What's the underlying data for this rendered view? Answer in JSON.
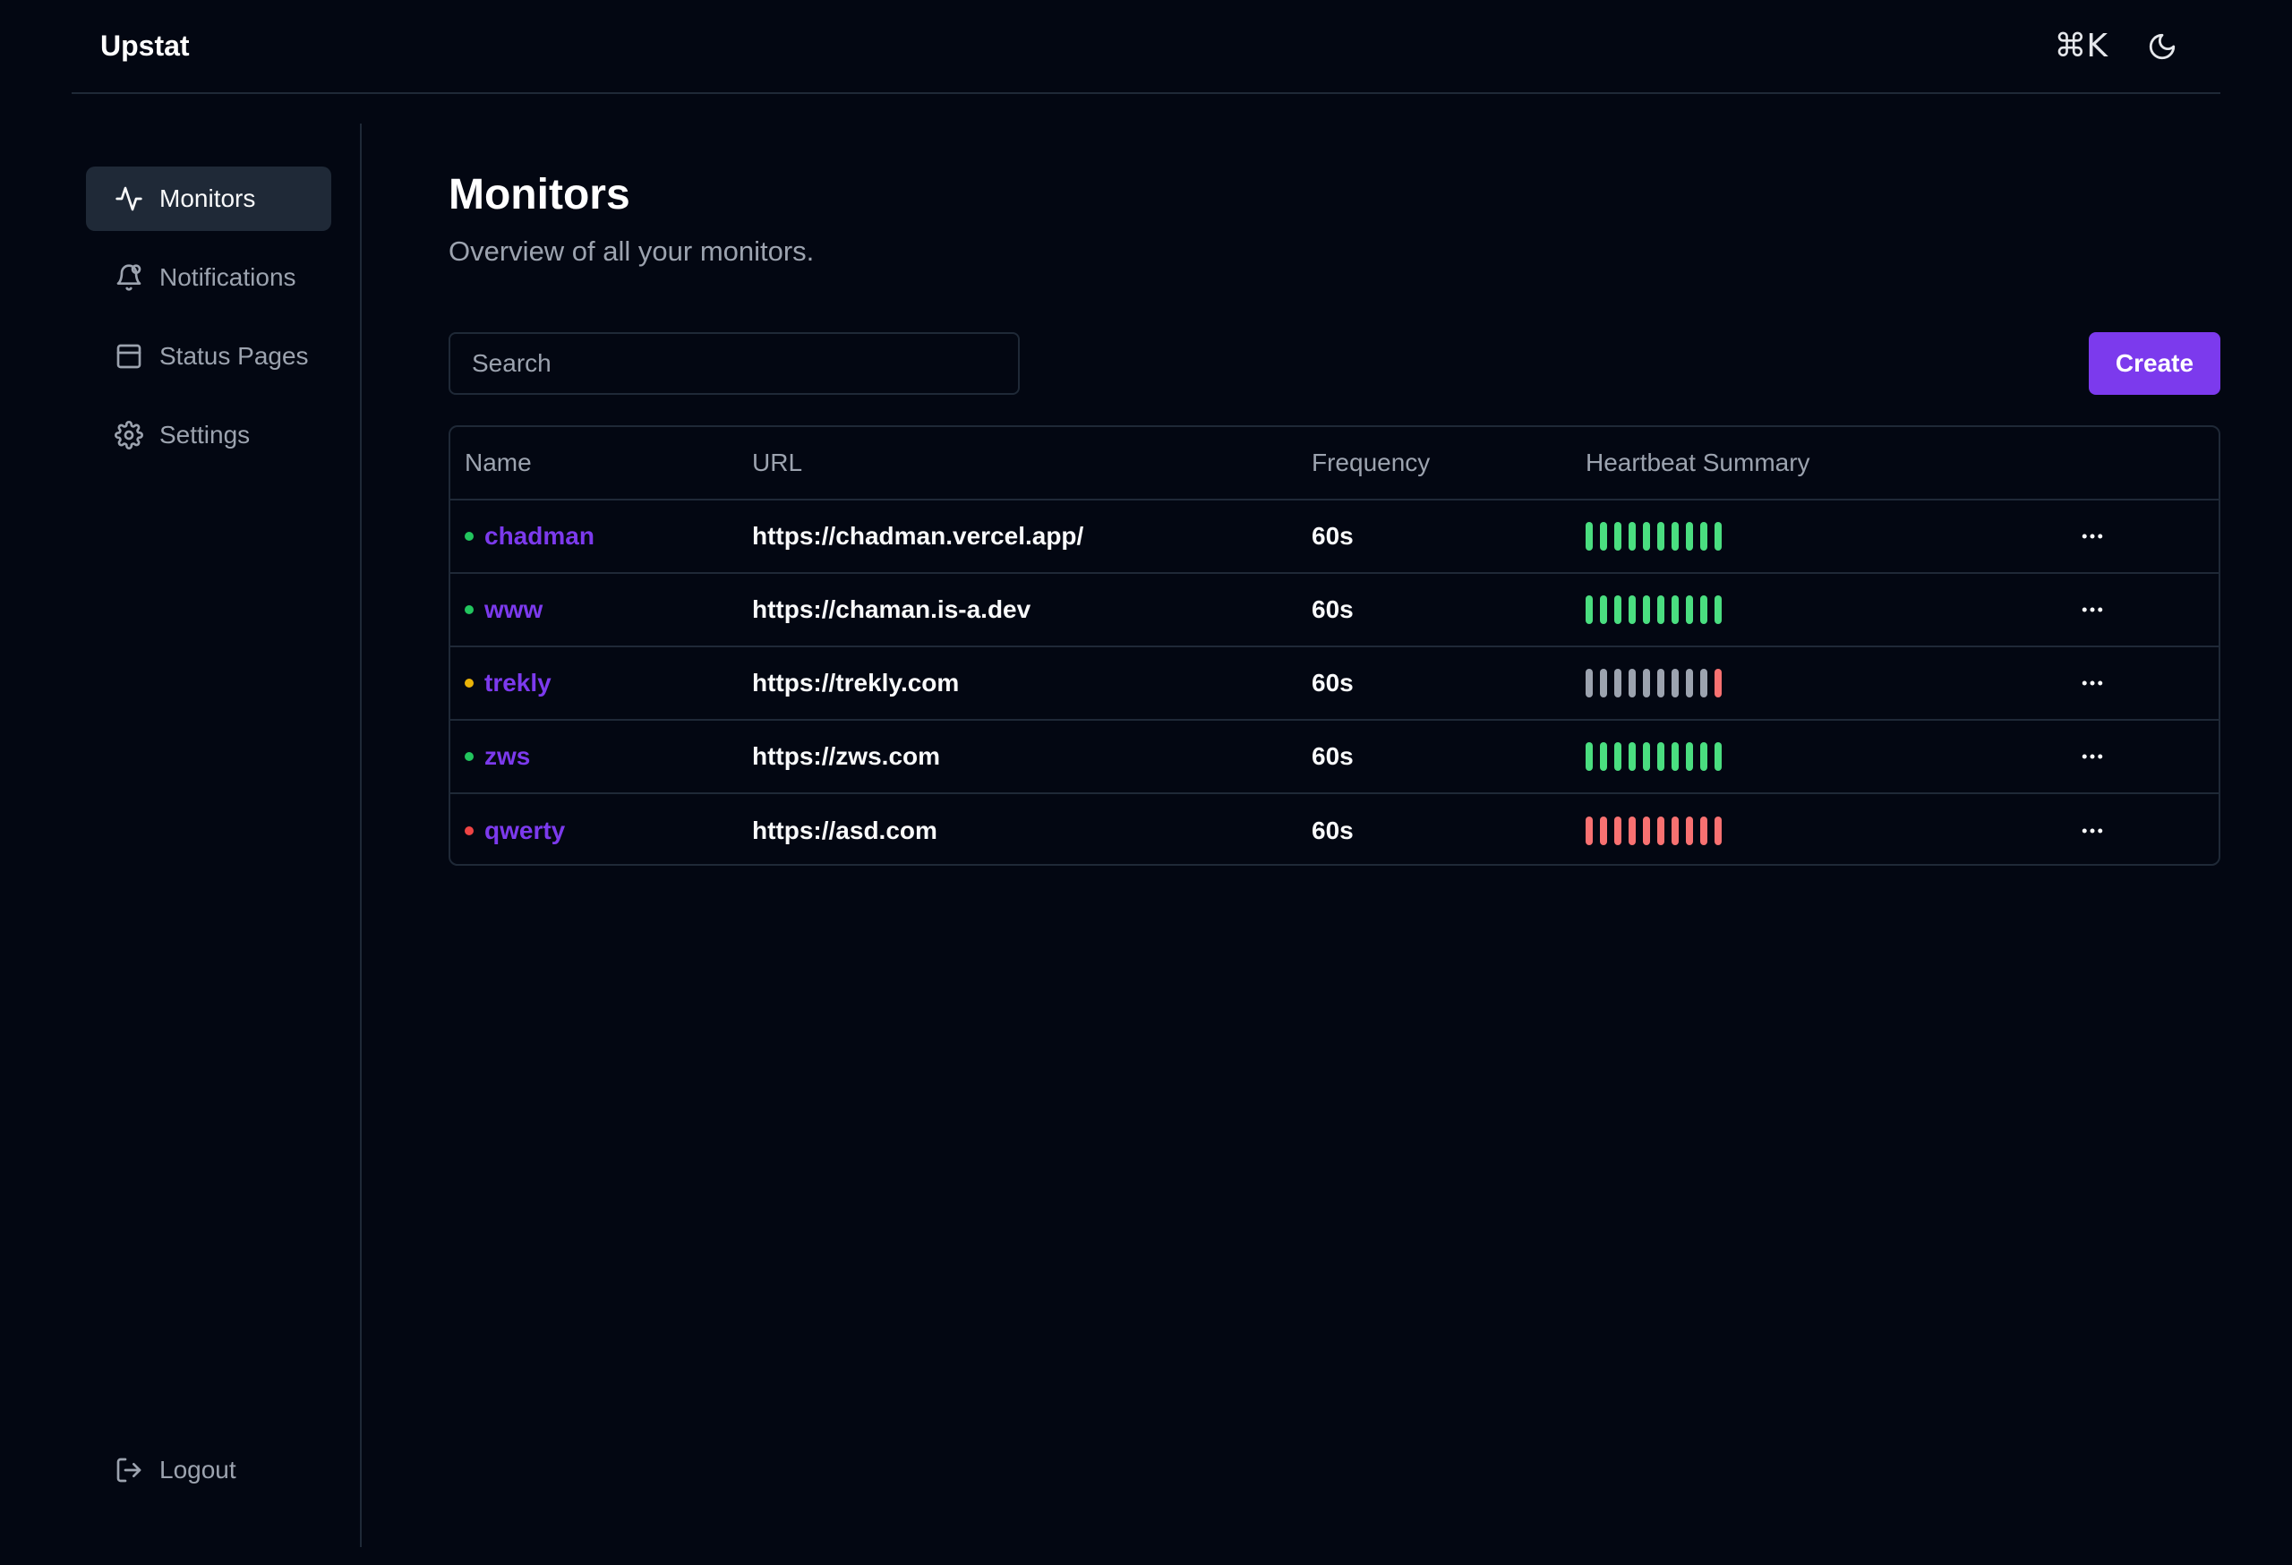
{
  "app": {
    "brand": "Upstat"
  },
  "header": {
    "shortcut_label": "⌘K",
    "theme_icon": "moon-icon"
  },
  "sidebar": {
    "items": [
      {
        "label": "Monitors",
        "icon": "activity-icon",
        "active": true
      },
      {
        "label": "Notifications",
        "icon": "bell-icon",
        "active": false
      },
      {
        "label": "Status Pages",
        "icon": "panel-icon",
        "active": false
      },
      {
        "label": "Settings",
        "icon": "gear-icon",
        "active": false
      }
    ],
    "logout_label": "Logout"
  },
  "main": {
    "title": "Monitors",
    "subtitle": "Overview of all your monitors.",
    "search_placeholder": "Search",
    "create_label": "Create"
  },
  "table": {
    "columns": [
      "Name",
      "URL",
      "Frequency",
      "Heartbeat Summary"
    ],
    "rows": [
      {
        "name": "chadman",
        "url": "https://chadman.vercel.app/",
        "frequency": "60s",
        "status_color": "#22c55e",
        "heartbeats": [
          "up",
          "up",
          "up",
          "up",
          "up",
          "up",
          "up",
          "up",
          "up",
          "up"
        ]
      },
      {
        "name": "www",
        "url": "https://chaman.is-a.dev",
        "frequency": "60s",
        "status_color": "#22c55e",
        "heartbeats": [
          "up",
          "up",
          "up",
          "up",
          "up",
          "up",
          "up",
          "up",
          "up",
          "up"
        ]
      },
      {
        "name": "trekly",
        "url": "https://trekly.com",
        "frequency": "60s",
        "status_color": "#eab308",
        "heartbeats": [
          "none",
          "none",
          "none",
          "none",
          "none",
          "none",
          "none",
          "none",
          "none",
          "down"
        ]
      },
      {
        "name": "zws",
        "url": "https://zws.com",
        "frequency": "60s",
        "status_color": "#22c55e",
        "heartbeats": [
          "up",
          "up",
          "up",
          "up",
          "up",
          "up",
          "up",
          "up",
          "up",
          "up"
        ]
      },
      {
        "name": "qwerty",
        "url": "https://asd.com",
        "frequency": "60s",
        "status_color": "#ef4444",
        "heartbeats": [
          "down",
          "down",
          "down",
          "down",
          "down",
          "down",
          "down",
          "down",
          "down",
          "down"
        ]
      }
    ]
  },
  "colors": {
    "accent": "#7c3aed",
    "heartbeat_up": "#4ade80",
    "heartbeat_down": "#f87171",
    "heartbeat_none": "#9ca3af",
    "background": "#030712",
    "border": "#1f2937"
  }
}
